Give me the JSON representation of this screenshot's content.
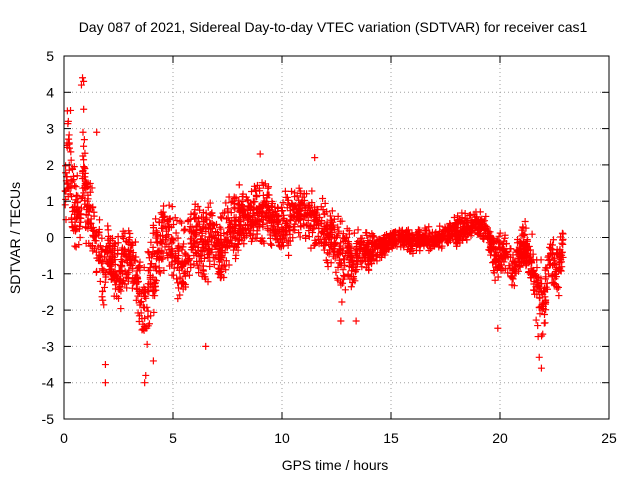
{
  "chart_data": {
    "type": "scatter",
    "title": "Day 087 of 2021, Sidereal Day-to-day VTEC variation (SDTVAR) for receiver cas1",
    "xlabel": "GPS time / hours",
    "ylabel": "SDTVAR / TECUs",
    "xlim": [
      0,
      25
    ],
    "ylim": [
      -5,
      5
    ],
    "xticks": [
      0,
      5,
      10,
      15,
      20,
      25
    ],
    "yticks": [
      -5,
      -4,
      -3,
      -2,
      -1,
      0,
      1,
      2,
      3,
      4,
      5
    ],
    "grid": true,
    "marker": "+",
    "color": "#ff0000",
    "series": [
      {
        "name": "SDTVAR",
        "profile": [
          [
            0.0,
            1.2,
            1.4
          ],
          [
            0.1,
            1.6,
            1.8
          ],
          [
            0.2,
            2.2,
            2.0
          ],
          [
            0.35,
            1.4,
            1.6
          ],
          [
            0.5,
            1.0,
            1.4
          ],
          [
            0.7,
            0.4,
            1.2
          ],
          [
            0.8,
            1.0,
            1.2
          ],
          [
            0.9,
            2.6,
            2.0
          ],
          [
            1.0,
            1.0,
            1.8
          ],
          [
            1.2,
            0.6,
            1.2
          ],
          [
            1.4,
            0.0,
            1.4
          ],
          [
            1.6,
            -0.2,
            1.2
          ],
          [
            1.8,
            -1.2,
            1.6
          ],
          [
            2.0,
            -0.4,
            1.2
          ],
          [
            2.3,
            -0.8,
            1.2
          ],
          [
            2.6,
            -1.0,
            1.4
          ],
          [
            2.9,
            -0.6,
            1.2
          ],
          [
            3.2,
            -0.8,
            1.2
          ],
          [
            3.5,
            -1.5,
            1.6
          ],
          [
            3.8,
            -2.0,
            1.8
          ],
          [
            4.0,
            -1.0,
            2.0
          ],
          [
            4.3,
            -0.4,
            1.4
          ],
          [
            4.6,
            0.2,
            1.4
          ],
          [
            5.0,
            -0.2,
            1.4
          ],
          [
            5.3,
            -0.8,
            1.6
          ],
          [
            5.6,
            -0.6,
            1.4
          ],
          [
            6.0,
            0.2,
            1.4
          ],
          [
            6.4,
            -0.2,
            1.6
          ],
          [
            6.8,
            0.0,
            1.4
          ],
          [
            7.2,
            -0.4,
            1.4
          ],
          [
            7.6,
            0.2,
            1.2
          ],
          [
            8.0,
            0.4,
            1.2
          ],
          [
            8.4,
            0.6,
            1.0
          ],
          [
            8.8,
            0.6,
            1.2
          ],
          [
            9.2,
            0.8,
            1.2
          ],
          [
            9.6,
            0.4,
            1.0
          ],
          [
            10.0,
            0.2,
            1.0
          ],
          [
            10.4,
            0.6,
            1.2
          ],
          [
            10.8,
            0.8,
            1.2
          ],
          [
            11.2,
            0.6,
            1.0
          ],
          [
            11.6,
            0.4,
            1.0
          ],
          [
            12.0,
            0.2,
            1.2
          ],
          [
            12.4,
            -0.2,
            1.2
          ],
          [
            12.7,
            -0.6,
            1.4
          ],
          [
            13.0,
            -0.4,
            1.2
          ],
          [
            13.3,
            -0.8,
            1.0
          ],
          [
            13.6,
            -0.2,
            0.8
          ],
          [
            14.0,
            -0.4,
            0.7
          ],
          [
            14.5,
            -0.3,
            0.5
          ],
          [
            15.0,
            -0.1,
            0.4
          ],
          [
            15.5,
            0.0,
            0.3
          ],
          [
            16.0,
            -0.1,
            0.5
          ],
          [
            16.5,
            0.0,
            0.4
          ],
          [
            17.0,
            -0.1,
            0.4
          ],
          [
            17.5,
            0.1,
            0.4
          ],
          [
            18.0,
            0.2,
            0.5
          ],
          [
            18.5,
            0.3,
            0.5
          ],
          [
            19.0,
            0.4,
            0.6
          ],
          [
            19.4,
            0.2,
            0.6
          ],
          [
            19.8,
            -0.6,
            0.8
          ],
          [
            20.2,
            -0.4,
            0.8
          ],
          [
            20.6,
            -0.8,
            1.0
          ],
          [
            21.0,
            -0.2,
            0.8
          ],
          [
            21.4,
            -0.6,
            1.0
          ],
          [
            21.7,
            -1.6,
            1.4
          ],
          [
            22.0,
            -1.8,
            1.4
          ],
          [
            22.3,
            -0.6,
            1.0
          ],
          [
            22.6,
            -1.0,
            1.0
          ],
          [
            22.9,
            -0.4,
            1.0
          ]
        ],
        "outliers": [
          [
            0.85,
            4.4
          ],
          [
            0.9,
            4.3
          ],
          [
            0.8,
            4.2
          ],
          [
            0.3,
            3.5
          ],
          [
            0.2,
            3.2
          ],
          [
            1.5,
            2.9
          ],
          [
            1.9,
            -3.5
          ],
          [
            1.9,
            -4.0
          ],
          [
            3.7,
            -4.0
          ],
          [
            3.75,
            -3.8
          ],
          [
            4.1,
            -3.4
          ],
          [
            6.5,
            -3.0
          ],
          [
            9.0,
            2.3
          ],
          [
            11.5,
            2.2
          ],
          [
            21.9,
            -3.6
          ],
          [
            21.8,
            -3.3
          ],
          [
            19.9,
            -2.5
          ],
          [
            12.7,
            -2.3
          ],
          [
            13.4,
            -2.3
          ],
          [
            22.7,
            -1.6
          ]
        ]
      }
    ]
  }
}
